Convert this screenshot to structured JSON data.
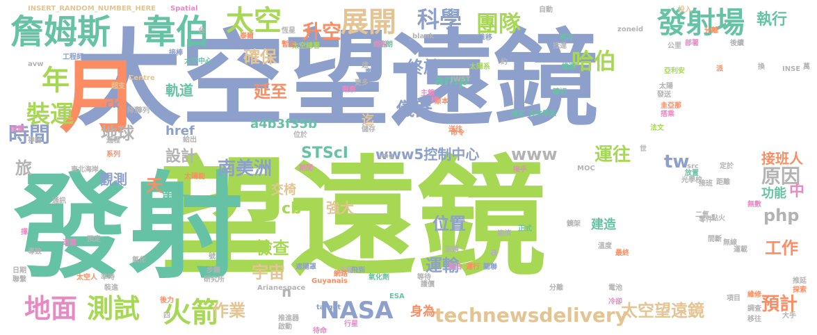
{
  "words": [
    {
      "text": "太空望遠鏡",
      "color": "#8da0cb"
    },
    {
      "text": "望遠鏡",
      "color": "#a6d854"
    },
    {
      "text": "發射",
      "color": "#66c2a5"
    },
    {
      "text": "月",
      "color": "#fc8d62"
    },
    {
      "text": "詹姆斯",
      "color": "#66c2a5"
    },
    {
      "text": "韋伯",
      "color": "#66c2a5"
    },
    {
      "text": "太空",
      "color": "#a6d854"
    },
    {
      "text": "展開",
      "color": "#e5c494"
    },
    {
      "text": "科學",
      "color": "#8da0cb"
    },
    {
      "text": "團隊",
      "color": "#a6d854"
    },
    {
      "text": "發射場",
      "color": "#66c2a5"
    },
    {
      "text": "哈伯",
      "color": "#a6d854"
    },
    {
      "text": "升空",
      "color": "#fc8d62"
    },
    {
      "text": "執行",
      "color": "#66c2a5"
    },
    {
      "text": "年",
      "color": "#a6d854"
    },
    {
      "text": "確保",
      "color": "#e5c494"
    },
    {
      "text": "終於",
      "color": "#8da0cb"
    },
    {
      "text": "amp",
      "color": "#66c2a5"
    },
    {
      "text": "儀器",
      "color": "#8da0cb"
    },
    {
      "text": "延至",
      "color": "#fc8d62"
    },
    {
      "text": "軌道",
      "color": "#66c2a5"
    },
    {
      "text": "裝運",
      "color": "#a6d854"
    },
    {
      "text": "地球",
      "color": "#b3b3b3"
    },
    {
      "text": "ck",
      "color": "#8da0cb"
    },
    {
      "text": "時間",
      "color": "#8da0cb"
    },
    {
      "text": "a4b3f35b",
      "color": "#66c2a5"
    },
    {
      "text": "href",
      "color": "#8da0cb"
    },
    {
      "text": "設計",
      "color": "#b3b3b3"
    },
    {
      "text": "南美洲",
      "color": "#8da0cb"
    },
    {
      "text": "www5控制中心",
      "color": "#8da0cb"
    },
    {
      "text": "www",
      "color": "#b3b3b3"
    },
    {
      "text": "STScI",
      "color": "#66c2a5"
    },
    {
      "text": "運往",
      "color": "#a6d854"
    },
    {
      "text": "tw",
      "color": "#8da0cb"
    },
    {
      "text": "接班人",
      "color": "#fc8d62"
    },
    {
      "text": "原因",
      "color": "#b3b3b3"
    },
    {
      "text": "觀測",
      "color": "#8da0cb"
    },
    {
      "text": "天",
      "color": "#fc8d62"
    },
    {
      "text": "第一",
      "color": "#66c2a5"
    },
    {
      "text": "交椅",
      "color": "#e5c494"
    },
    {
      "text": "強大",
      "color": "#e5c494"
    },
    {
      "text": "php",
      "color": "#b3b3b3"
    },
    {
      "text": "cb",
      "color": "#a6d854"
    },
    {
      "text": "位置",
      "color": "#8da0cb"
    },
    {
      "text": "建造",
      "color": "#66c2a5"
    },
    {
      "text": "功能",
      "color": "#66c2a5"
    },
    {
      "text": "中",
      "color": "#e78ac3"
    },
    {
      "text": "工作",
      "color": "#fc8d62"
    },
    {
      "text": "檢查",
      "color": "#a6d854"
    },
    {
      "text": "宇宙",
      "color": "#e5c494"
    },
    {
      "text": "運輸",
      "color": "#8da0cb"
    },
    {
      "text": "地面",
      "color": "#e78ac3"
    },
    {
      "text": "測試",
      "color": "#a6d854"
    },
    {
      "text": "火箭",
      "color": "#a6d854"
    },
    {
      "text": "作業",
      "color": "#e5c494"
    },
    {
      "text": "NASA",
      "color": "#8da0cb"
    },
    {
      "text": "身為",
      "color": "#fc8d62"
    },
    {
      "text": "technewsdelivery",
      "color": "#e5c494"
    },
    {
      "text": "太空望遠鏡",
      "color": "#e5c494"
    },
    {
      "text": "預計",
      "color": "#fc8d62"
    },
    {
      "text": "旅",
      "color": "#b3b3b3"
    },
    {
      "text": "n",
      "color": "#b3b3b3"
    },
    {
      "text": "a",
      "color": "#b3b3b3"
    },
    {
      "text": "迄",
      "color": "#e5c494"
    },
    {
      "text": "INSERT_RANDOM_NUMBER_HERE",
      "color": "#e5c494"
    },
    {
      "text": "Spatial",
      "color": "#e78ac3"
    },
    {
      "text": "Arianespace",
      "color": "#b3b3b3"
    },
    {
      "text": "Guyanais",
      "color": "#fc8d62"
    },
    {
      "text": "JWST",
      "color": "#b3b3b3"
    },
    {
      "text": "zoneid",
      "color": "#b3b3b3"
    },
    {
      "text": "target",
      "color": "#8da0cb"
    },
    {
      "text": "ESA",
      "color": "#66c2a5"
    },
    {
      "text": "MOC",
      "color": "#b3b3b3"
    },
    {
      "text": "img",
      "color": "#b3b3b3"
    },
    {
      "text": "src",
      "color": "#b3b3b3"
    },
    {
      "text": "_blank",
      "color": "#b3b3b3"
    },
    {
      "text": "INSE",
      "color": "#b3b3b3"
    },
    {
      "text": "Centre",
      "color": "#e5c494"
    },
    {
      "text": "avw",
      "color": "#b3b3b3"
    },
    {
      "text": "工程師",
      "color": "#8da0cb"
    },
    {
      "text": "太空總署",
      "color": "#a6d854"
    },
    {
      "text": "拉格朗",
      "color": "#66c2a5"
    },
    {
      "text": "恆星",
      "color": "#b3b3b3"
    },
    {
      "text": "暫定",
      "color": "#fc8d62"
    },
    {
      "text": "太空中心",
      "color": "#66c2a5"
    },
    {
      "text": "接棒",
      "color": "#8da0cb"
    },
    {
      "text": "太陽系",
      "color": "#a6d854"
    },
    {
      "text": "推移",
      "color": "#8da0cb"
    },
    {
      "text": "推進",
      "color": "#66c2a5"
    },
    {
      "text": "亞利安",
      "color": "#a6d854"
    },
    {
      "text": "公里",
      "color": "#b3b3b3"
    },
    {
      "text": "部署",
      "color": "#e78ac3"
    },
    {
      "text": "後續",
      "color": "#b3b3b3"
    },
    {
      "text": "萬",
      "color": "#b3b3b3"
    },
    {
      "text": "自動",
      "color": "#b3b3b3"
    },
    {
      "text": "投入",
      "color": "#e5c494"
    },
    {
      "text": "分離",
      "color": "#fc8d62"
    },
    {
      "text": "寒冷",
      "color": "#66c2a5"
    },
    {
      "text": "抵達",
      "color": "#b3b3b3"
    },
    {
      "text": "奧秘",
      "color": "#8da0cb"
    },
    {
      "text": "觀察",
      "color": "#e78ac3"
    },
    {
      "text": "主鏡",
      "color": "#e78ac3"
    },
    {
      "text": "原本",
      "color": "#fc8d62"
    },
    {
      "text": "確切",
      "color": "#66c2a5"
    },
    {
      "text": "天文學家",
      "color": "#66c2a5"
    },
    {
      "text": "穩定",
      "color": "#66c2a5"
    },
    {
      "text": "發送",
      "color": "#b3b3b3"
    },
    {
      "text": "太陽",
      "color": "#b3b3b3"
    },
    {
      "text": "圭亞那",
      "color": "#fc8d62"
    },
    {
      "text": "搭乘",
      "color": "#e78ac3"
    },
    {
      "text": "法文",
      "color": "#a6d854"
    },
    {
      "text": "送往",
      "color": "#fc8d62"
    },
    {
      "text": "位於",
      "color": "#b3b3b3"
    },
    {
      "text": "儲存",
      "color": "#b3b3b3"
    },
    {
      "text": "燃料",
      "color": "#e78ac3"
    },
    {
      "text": "超支",
      "color": "#e5c494"
    },
    {
      "text": "降到",
      "color": "#b3b3b3"
    },
    {
      "text": "解開",
      "color": "#e78ac3"
    },
    {
      "text": "神秘",
      "color": "#b3b3b3"
    },
    {
      "text": "過程",
      "color": "#b3b3b3"
    },
    {
      "text": "系列",
      "color": "#fc8d62"
    },
    {
      "text": "給出",
      "color": "#b3b3b3"
    },
    {
      "text": "東北海岸",
      "color": "#b3b3b3"
    },
    {
      "text": "太陽能",
      "color": "#fc8d62"
    },
    {
      "text": "期間",
      "color": "#e78ac3"
    },
    {
      "text": "接手",
      "color": "#e78ac3"
    },
    {
      "text": "光學校",
      "color": "#b3b3b3"
    },
    {
      "text": "定於",
      "color": "#b3b3b3"
    },
    {
      "text": "放置",
      "color": "#66c2a5"
    },
    {
      "text": "接班",
      "color": "#b3b3b3"
    },
    {
      "text": "距離",
      "color": "#b3b3b3"
    },
    {
      "text": "二氫",
      "color": "#b3b3b3"
    },
    {
      "text": "點火",
      "color": "#b3b3b3"
    },
    {
      "text": "無數",
      "color": "#e78ac3"
    },
    {
      "text": "通訊",
      "color": "#b3b3b3"
    },
    {
      "text": "歐洲",
      "color": "#66c2a5"
    },
    {
      "text": "工程",
      "color": "#b3b3b3"
    },
    {
      "text": "飛到",
      "color": "#8da0cb"
    },
    {
      "text": "整合",
      "color": "#e78ac3"
    },
    {
      "text": "運行",
      "color": "#fc8d62"
    },
    {
      "text": "關聯",
      "color": "#8da0cb"
    },
    {
      "text": "副鏡",
      "color": "#b3b3b3"
    },
    {
      "text": "等待",
      "color": "#b3b3b3"
    },
    {
      "text": "氧化劑",
      "color": "#66c2a5"
    },
    {
      "text": "正式",
      "color": "#66c2a5"
    },
    {
      "text": "溫度",
      "color": "#b3b3b3"
    },
    {
      "text": "最終",
      "color": "#fc8d62"
    },
    {
      "text": "零件",
      "color": "#b3b3b3"
    },
    {
      "text": "無線",
      "color": "#b3b3b3"
    },
    {
      "text": "運載",
      "color": "#b3b3b3"
    },
    {
      "text": "預定",
      "color": "#b3b3b3"
    },
    {
      "text": "透露",
      "color": "#e78ac3"
    },
    {
      "text": "氧化",
      "color": "#b3b3b3"
    },
    {
      "text": "步驟",
      "color": "#b3b3b3"
    },
    {
      "text": "研究所",
      "color": "#b3b3b3"
    },
    {
      "text": "遮陽罩",
      "color": "#8da0cb"
    },
    {
      "text": "網路",
      "color": "#fc8d62"
    },
    {
      "text": "日期",
      "color": "#b3b3b3"
    },
    {
      "text": "聯繫",
      "color": "#b3b3b3"
    },
    {
      "text": "太空人",
      "color": "#fc8d62"
    },
    {
      "text": "準時",
      "color": "#b3b3b3"
    },
    {
      "text": "裝進",
      "color": "#b3b3b3"
    },
    {
      "text": "後力",
      "color": "#fc8d62"
    },
    {
      "text": "推進器",
      "color": "#b3b3b3"
    },
    {
      "text": "啟動",
      "color": "#b3b3b3"
    },
    {
      "text": "待命",
      "color": "#e78ac3"
    },
    {
      "text": "行星",
      "color": "#e78ac3"
    },
    {
      "text": "電池",
      "color": "#b3b3b3"
    },
    {
      "text": "冷卻",
      "color": "#e78ac3"
    },
    {
      "text": "維修",
      "color": "#fc8d62"
    },
    {
      "text": "調查",
      "color": "#b3b3b3"
    },
    {
      "text": "大手",
      "color": "#b3b3b3"
    },
    {
      "text": "移往",
      "color": "#b3b3b3"
    },
    {
      "text": "推延",
      "color": "#b3b3b3"
    },
    {
      "text": "探索",
      "color": "#fc8d62"
    },
    {
      "text": "項目",
      "color": "#b3b3b3"
    },
    {
      "text": "分離",
      "color": "#b3b3b3"
    },
    {
      "text": "護價",
      "color": "#b3b3b3"
    },
    {
      "text": "四",
      "color": "#b3b3b3"
    },
    {
      "text": "揮",
      "color": "#e78ac3"
    },
    {
      "text": "陣列",
      "color": "#b3b3b3"
    },
    {
      "text": "台",
      "color": "#b3b3b3"
    },
    {
      "text": "泰爾",
      "color": "#fc8d62"
    },
    {
      "text": "約",
      "color": "#b3b3b3"
    },
    {
      "text": "換",
      "color": "#b3b3b3"
    },
    {
      "text": "世",
      "color": "#b3b3b3"
    },
    {
      "text": "導致",
      "color": "#b3b3b3"
    },
    {
      "text": "號",
      "color": "#b3b3b3"
    },
    {
      "text": "校",
      "color": "#e78ac3"
    },
    {
      "text": "命令",
      "color": "#fc8d62"
    },
    {
      "text": "更多",
      "color": "#b3b3b3"
    },
    {
      "text": "遠",
      "color": "#b3b3b3"
    },
    {
      "text": "派",
      "color": "#fc8d62"
    },
    {
      "text": "鏡架",
      "color": "#b3b3b3"
    },
    {
      "text": "間斷",
      "color": "#b3b3b3"
    },
    {
      "text": "擁擠",
      "color": "#b3b3b3"
    }
  ]
}
